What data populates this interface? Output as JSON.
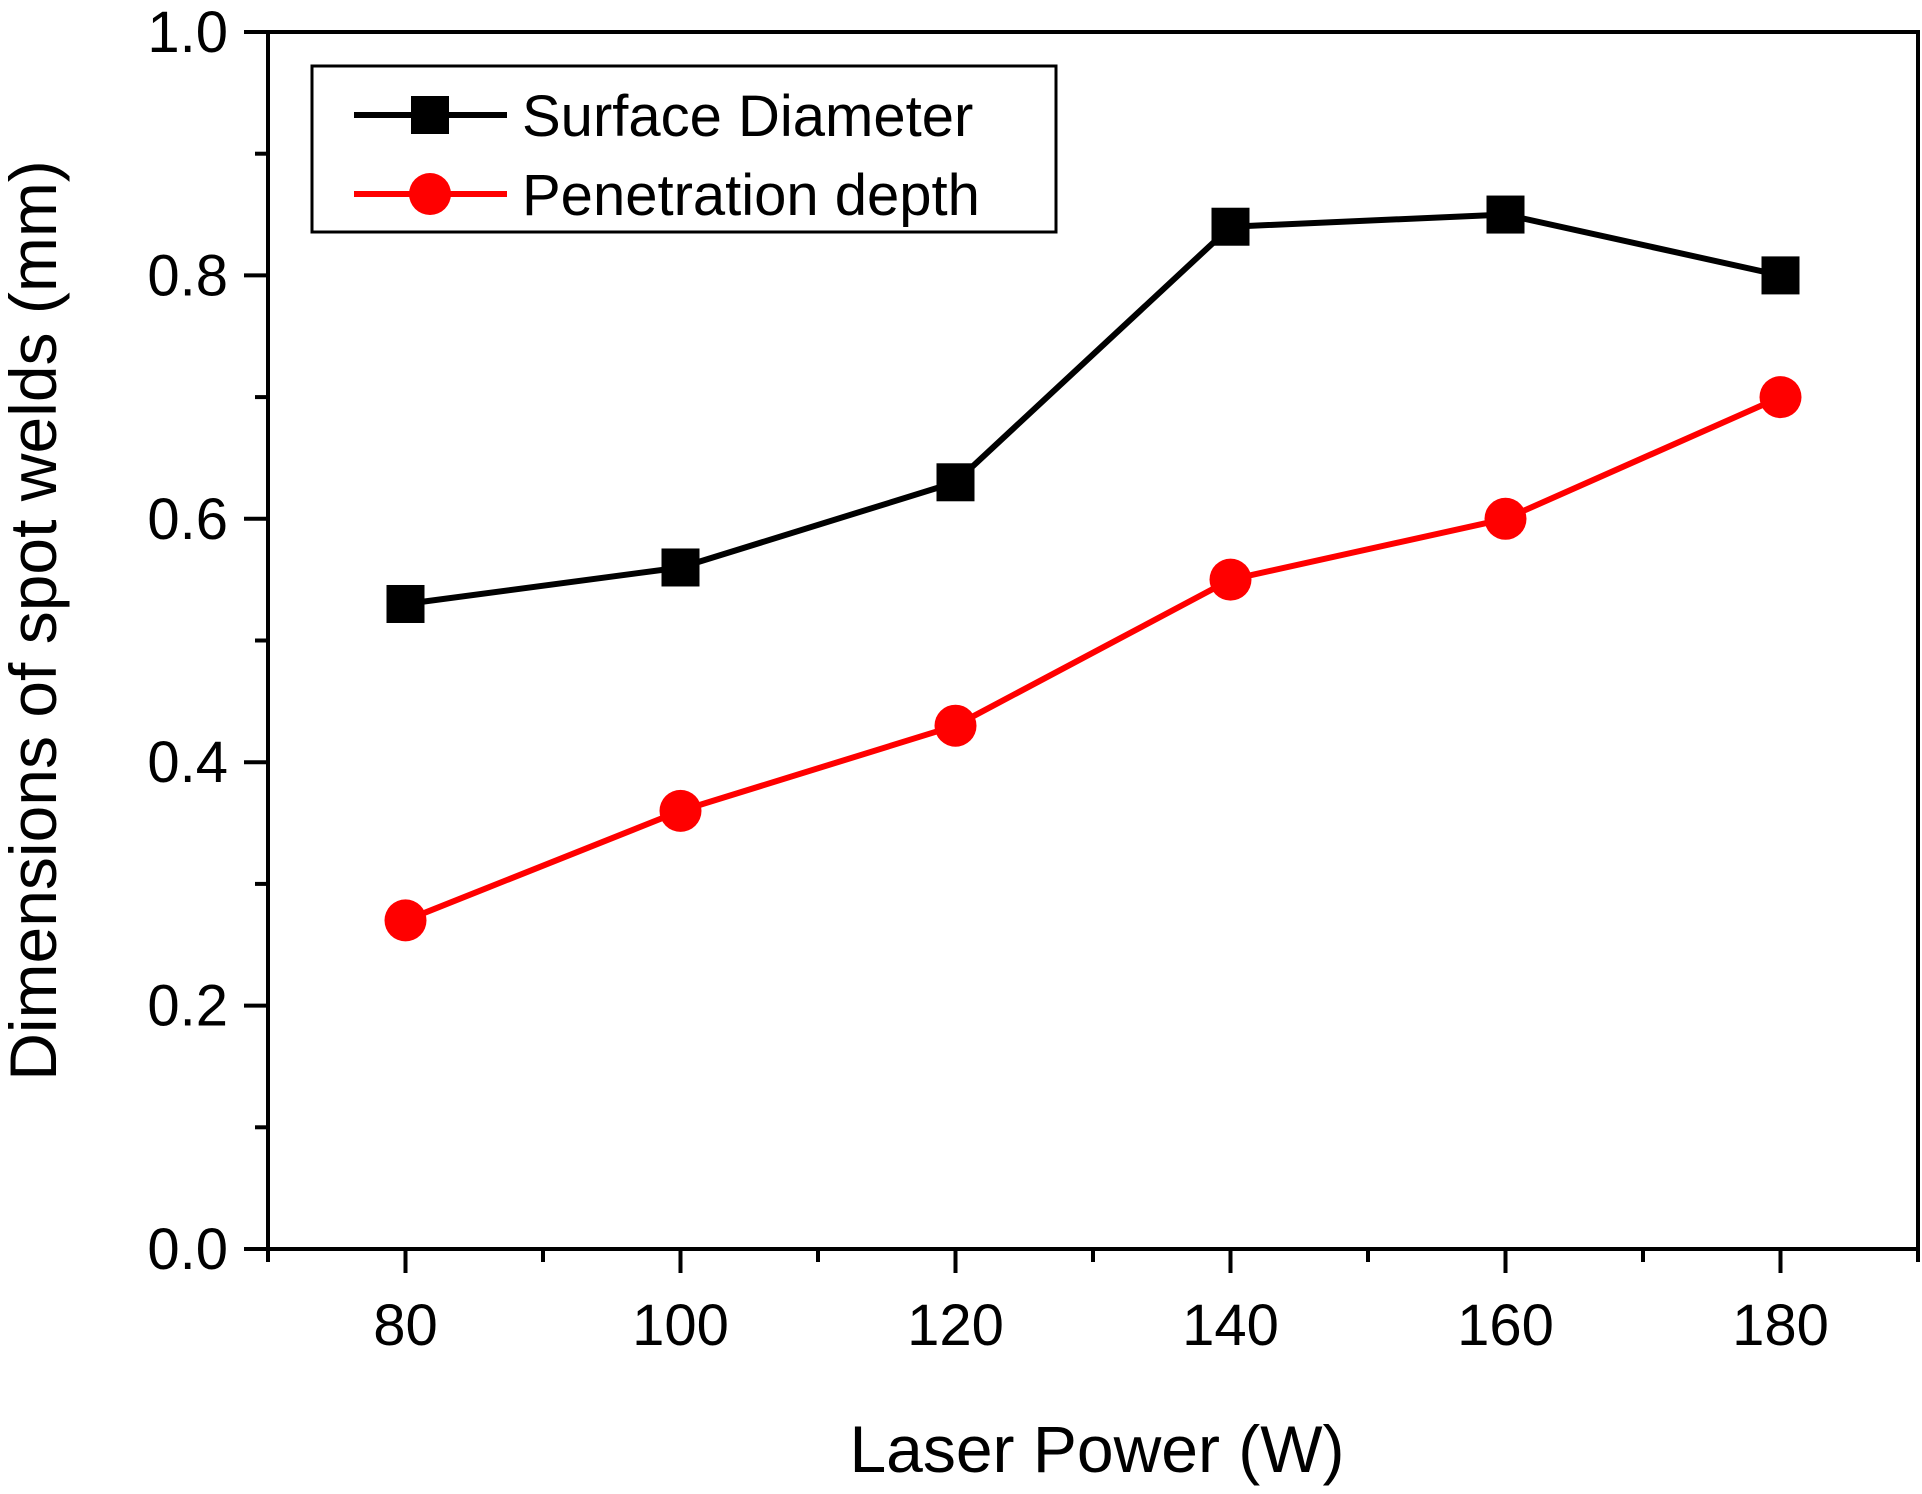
{
  "chart_data": {
    "type": "line",
    "title": "",
    "xlabel": "Laser Power (W)",
    "ylabel": "Dimensions of spot welds (mm)",
    "xlim": [
      70,
      190
    ],
    "ylim": [
      0.0,
      1.0
    ],
    "x": [
      80,
      100,
      120,
      140,
      160,
      180
    ],
    "x_ticks": [
      80,
      100,
      120,
      140,
      160,
      180
    ],
    "x_tick_labels": [
      "80",
      "100",
      "120",
      "140",
      "160",
      "180"
    ],
    "y_ticks": [
      0.0,
      0.2,
      0.4,
      0.6,
      0.8,
      1.0
    ],
    "y_tick_labels": [
      "0.0",
      "0.2",
      "0.4",
      "0.6",
      "0.8",
      "1.0"
    ],
    "grid": false,
    "legend_position": "top-left",
    "series": [
      {
        "name": "Surface Diameter",
        "values": [
          0.53,
          0.56,
          0.63,
          0.84,
          0.85,
          0.8
        ],
        "color": "#000000",
        "marker": "square"
      },
      {
        "name": "Penetration depth",
        "values": [
          0.27,
          0.36,
          0.43,
          0.55,
          0.6,
          0.7
        ],
        "color": "#ff0000",
        "marker": "circle"
      }
    ]
  }
}
